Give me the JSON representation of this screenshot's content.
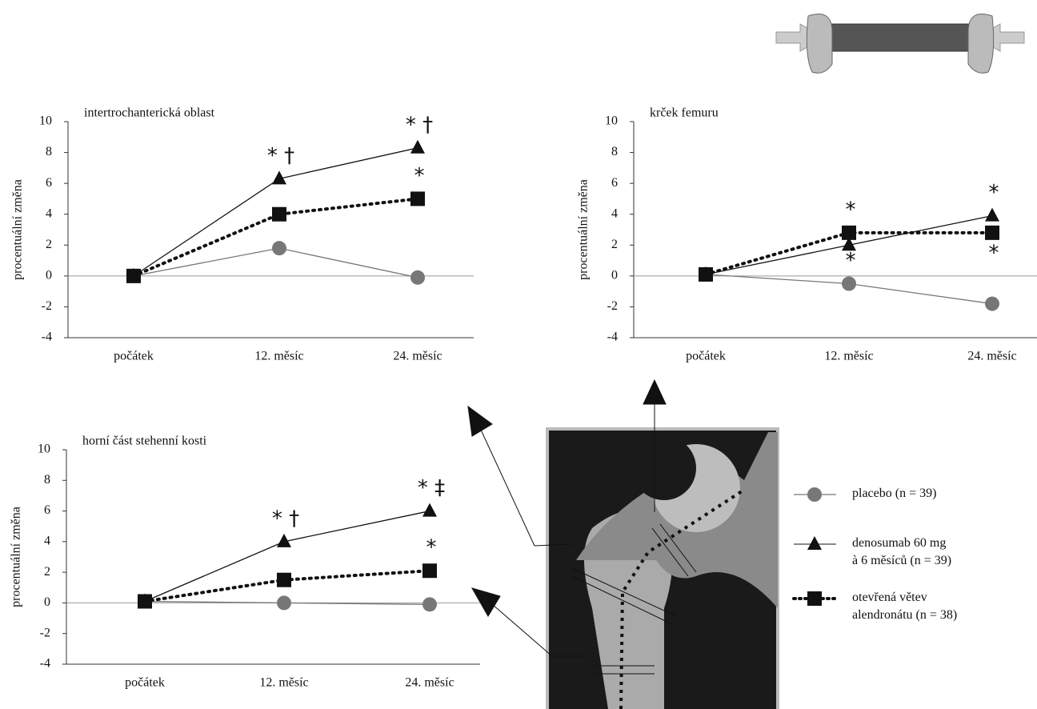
{
  "chart_data": [
    {
      "type": "line",
      "title": "intertrochanterická oblast",
      "y_label": "procentuální změna",
      "categories": [
        "počátek",
        "12.  měsíc",
        "24. měsíc"
      ],
      "ylim": [
        -4,
        10
      ],
      "yticks": [
        -4,
        -2,
        0,
        2,
        4,
        6,
        8,
        10
      ],
      "zero_line": true,
      "series": [
        {
          "name": "placebo (n = 39)",
          "color": "#777777",
          "marker": "circle",
          "dash": "solid",
          "values": [
            0,
            1.8,
            -0.1
          ]
        },
        {
          "name": "denosumab 60 mg\nà 6 měsíců (n = 39)",
          "color": "#111111",
          "marker": "triangle",
          "dash": "solid",
          "values": [
            0,
            6.3,
            8.3
          ]
        },
        {
          "name": "otevřená větev\nalendronátu (n = 38)",
          "color": "#111111",
          "marker": "square",
          "dash": "dotted",
          "values": [
            0,
            4.0,
            5.0
          ]
        }
      ],
      "annotations": [
        {
          "text": "* †",
          "series": 1,
          "point": 1,
          "side": "above"
        },
        {
          "text": "* †",
          "series": 1,
          "point": 2,
          "side": "above"
        },
        {
          "text": "*",
          "series": 2,
          "point": 2,
          "side": "above"
        }
      ]
    },
    {
      "type": "line",
      "title": "krček femuru",
      "y_label": "procentuální změna",
      "categories": [
        "počátek",
        "12.  měsíc",
        "24. měsíc"
      ],
      "ylim": [
        -4,
        10
      ],
      "yticks": [
        -4,
        -2,
        0,
        2,
        4,
        6,
        8,
        10
      ],
      "zero_line": true,
      "series": [
        {
          "color": "#777777",
          "marker": "circle",
          "dash": "solid",
          "values": [
            0.1,
            -0.5,
            -1.8
          ]
        },
        {
          "color": "#111111",
          "marker": "triangle",
          "dash": "solid",
          "values": [
            0.1,
            2.0,
            3.9
          ]
        },
        {
          "color": "#111111",
          "marker": "square",
          "dash": "dotted",
          "values": [
            0.1,
            2.8,
            2.8
          ]
        }
      ],
      "annotations": [
        {
          "text": "*",
          "series": 2,
          "point": 1,
          "side": "above"
        },
        {
          "text": "*",
          "series": 0,
          "point": 1,
          "side": "above"
        },
        {
          "text": "*",
          "series": 1,
          "point": 2,
          "side": "above"
        },
        {
          "text": "*",
          "series": 2,
          "point": 2,
          "side": "below"
        }
      ]
    },
    {
      "type": "line",
      "title": "horní část stehenní kosti",
      "y_label": "procentuální změna",
      "categories": [
        "počátek",
        "12.  měsíc",
        "24. měsíc"
      ],
      "ylim": [
        -4,
        10
      ],
      "yticks": [
        -4,
        -2,
        0,
        2,
        4,
        6,
        8,
        10
      ],
      "zero_line": true,
      "series": [
        {
          "color": "#777777",
          "marker": "circle",
          "dash": "solid",
          "values": [
            0.1,
            0.0,
            -0.1
          ]
        },
        {
          "color": "#111111",
          "marker": "triangle",
          "dash": "solid",
          "values": [
            0.1,
            4.0,
            6.0
          ]
        },
        {
          "color": "#111111",
          "marker": "square",
          "dash": "dotted",
          "values": [
            0.1,
            1.5,
            2.1
          ]
        }
      ],
      "annotations": [
        {
          "text": "* †",
          "series": 1,
          "point": 1,
          "side": "above"
        },
        {
          "text": "* ‡",
          "series": 1,
          "point": 2,
          "side": "above"
        },
        {
          "text": "*",
          "series": 2,
          "point": 2,
          "side": "above"
        }
      ]
    }
  ]
}
